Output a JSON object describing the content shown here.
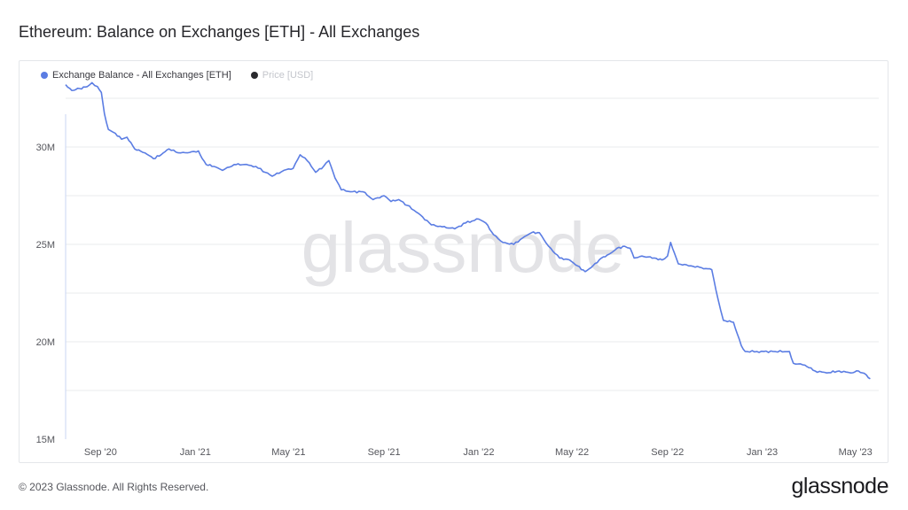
{
  "title": "Ethereum: Balance on Exchanges [ETH] - All Exchanges",
  "watermark": "glassnode",
  "footer": "© 2023 Glassnode. All Rights Reserved.",
  "brand": "glassnode",
  "colors": {
    "series": "#5b7de3",
    "price_dot": "#2a2a2e",
    "grid": "#e9ebee",
    "axis_text": "#55565c",
    "watermark": "#e3e3e6"
  },
  "legend": [
    {
      "label": "Exchange Balance - All Exchanges [ETH]",
      "color": "#5b7de3",
      "active": true
    },
    {
      "label": "Price [USD]",
      "color": "#2a2a2e",
      "active": false
    }
  ],
  "chart_data": {
    "type": "line",
    "title": "Ethereum: Balance on Exchanges [ETH] - All Exchanges",
    "xlabel": "",
    "ylabel": "",
    "ylim": [
      15000000,
      33500000
    ],
    "y_ticks": [
      {
        "value": 15000000,
        "label": "15M"
      },
      {
        "value": 20000000,
        "label": "20M"
      },
      {
        "value": 25000000,
        "label": "25M"
      },
      {
        "value": 30000000,
        "label": "30M"
      }
    ],
    "grid_values": [
      17500000,
      20000000,
      22500000,
      25000000,
      27500000,
      30000000,
      32500000
    ],
    "xlim": [
      "2020-07-18",
      "2023-05-31"
    ],
    "x_ticks": [
      {
        "date": "2020-09-01",
        "label": "Sep '20"
      },
      {
        "date": "2021-01-01",
        "label": "Jan '21"
      },
      {
        "date": "2021-05-01",
        "label": "May '21"
      },
      {
        "date": "2021-09-01",
        "label": "Sep '21"
      },
      {
        "date": "2022-01-01",
        "label": "Jan '22"
      },
      {
        "date": "2022-05-01",
        "label": "May '22"
      },
      {
        "date": "2022-09-01",
        "label": "Sep '22"
      },
      {
        "date": "2023-01-01",
        "label": "Jan '23"
      },
      {
        "date": "2023-05-01",
        "label": "May '23"
      }
    ],
    "grid": true,
    "legend_position": "top-left",
    "series": [
      {
        "name": "Exchange Balance - All Exchanges [ETH]",
        "points": [
          [
            "2020-07-18",
            33200000
          ],
          [
            "2020-07-26",
            32900000
          ],
          [
            "2020-08-05",
            33000000
          ],
          [
            "2020-08-15",
            33100000
          ],
          [
            "2020-08-21",
            33300000
          ],
          [
            "2020-08-28",
            33100000
          ],
          [
            "2020-09-02",
            32800000
          ],
          [
            "2020-09-06",
            31700000
          ],
          [
            "2020-09-11",
            30900000
          ],
          [
            "2020-09-20",
            30700000
          ],
          [
            "2020-09-28",
            30400000
          ],
          [
            "2020-10-05",
            30500000
          ],
          [
            "2020-10-15",
            29900000
          ],
          [
            "2020-10-28",
            29700000
          ],
          [
            "2020-11-08",
            29400000
          ],
          [
            "2020-11-18",
            29600000
          ],
          [
            "2020-11-28",
            29900000
          ],
          [
            "2020-12-10",
            29700000
          ],
          [
            "2020-12-22",
            29700000
          ],
          [
            "2021-01-05",
            29800000
          ],
          [
            "2021-01-10",
            29400000
          ],
          [
            "2021-01-15",
            29100000
          ],
          [
            "2021-01-25",
            29000000
          ],
          [
            "2021-02-05",
            28800000
          ],
          [
            "2021-02-20",
            29100000
          ],
          [
            "2021-03-05",
            29100000
          ],
          [
            "2021-03-20",
            29000000
          ],
          [
            "2021-04-01",
            28700000
          ],
          [
            "2021-04-10",
            28500000
          ],
          [
            "2021-04-25",
            28800000
          ],
          [
            "2021-05-07",
            28900000
          ],
          [
            "2021-05-16",
            29600000
          ],
          [
            "2021-05-25",
            29300000
          ],
          [
            "2021-06-05",
            28700000
          ],
          [
            "2021-06-15",
            29000000
          ],
          [
            "2021-06-22",
            29300000
          ],
          [
            "2021-06-30",
            28400000
          ],
          [
            "2021-07-08",
            27800000
          ],
          [
            "2021-07-20",
            27700000
          ],
          [
            "2021-08-05",
            27700000
          ],
          [
            "2021-08-18",
            27300000
          ],
          [
            "2021-09-01",
            27500000
          ],
          [
            "2021-09-10",
            27200000
          ],
          [
            "2021-09-20",
            27300000
          ],
          [
            "2021-10-01",
            27000000
          ],
          [
            "2021-10-15",
            26600000
          ],
          [
            "2021-11-01",
            26000000
          ],
          [
            "2021-11-15",
            25900000
          ],
          [
            "2021-12-01",
            25800000
          ],
          [
            "2021-12-15",
            26100000
          ],
          [
            "2022-01-01",
            26300000
          ],
          [
            "2022-01-10",
            26100000
          ],
          [
            "2022-01-20",
            25500000
          ],
          [
            "2022-02-01",
            25100000
          ],
          [
            "2022-02-15",
            25000000
          ],
          [
            "2022-03-01",
            25400000
          ],
          [
            "2022-03-10",
            25600000
          ],
          [
            "2022-03-20",
            25600000
          ],
          [
            "2022-04-01",
            24900000
          ],
          [
            "2022-04-15",
            24300000
          ],
          [
            "2022-04-28",
            24200000
          ],
          [
            "2022-05-08",
            23900000
          ],
          [
            "2022-05-18",
            23600000
          ],
          [
            "2022-05-28",
            23900000
          ],
          [
            "2022-06-08",
            24300000
          ],
          [
            "2022-06-18",
            24500000
          ],
          [
            "2022-06-28",
            24800000
          ],
          [
            "2022-07-08",
            24900000
          ],
          [
            "2022-07-15",
            24800000
          ],
          [
            "2022-07-20",
            24300000
          ],
          [
            "2022-07-30",
            24400000
          ],
          [
            "2022-08-15",
            24300000
          ],
          [
            "2022-08-25",
            24200000
          ],
          [
            "2022-09-01",
            24400000
          ],
          [
            "2022-09-05",
            25100000
          ],
          [
            "2022-09-15",
            24000000
          ],
          [
            "2022-10-01",
            23900000
          ],
          [
            "2022-10-15",
            23800000
          ],
          [
            "2022-10-28",
            23700000
          ],
          [
            "2022-11-05",
            22200000
          ],
          [
            "2022-11-12",
            21100000
          ],
          [
            "2022-11-25",
            21000000
          ],
          [
            "2022-12-05",
            19800000
          ],
          [
            "2022-12-10",
            19500000
          ],
          [
            "2022-12-25",
            19500000
          ],
          [
            "2023-01-15",
            19500000
          ],
          [
            "2023-02-05",
            19500000
          ],
          [
            "2023-02-10",
            18900000
          ],
          [
            "2023-02-25",
            18800000
          ],
          [
            "2023-03-10",
            18500000
          ],
          [
            "2023-03-25",
            18400000
          ],
          [
            "2023-04-10",
            18500000
          ],
          [
            "2023-04-25",
            18400000
          ],
          [
            "2023-05-05",
            18500000
          ],
          [
            "2023-05-15",
            18300000
          ],
          [
            "2023-05-20",
            18100000
          ]
        ]
      }
    ]
  }
}
